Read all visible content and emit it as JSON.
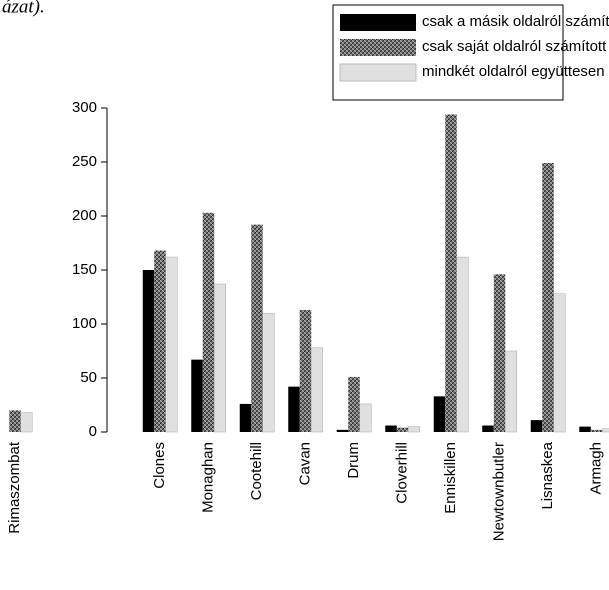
{
  "caption_fragment": "ázat).",
  "chart_data": {
    "type": "bar",
    "categories": [
      "Rimaszombat",
      "Clones",
      "Monaghan",
      "Cootehill",
      "Cavan",
      "Drum",
      "Cloverhill",
      "Enniskillen",
      "Newtownbutler",
      "Lisnaskea",
      "Armagh"
    ],
    "series": [
      {
        "name": "csak a másik oldalról számított",
        "color": "#000000",
        "values": [
          null,
          150,
          67,
          26,
          42,
          2,
          6,
          33,
          6,
          11,
          5
        ]
      },
      {
        "name": "csak saját oldalról számított",
        "color": "#6a6a6a",
        "values": [
          20,
          168,
          203,
          192,
          113,
          51,
          4,
          294,
          146,
          249,
          2
        ]
      },
      {
        "name": "mindkét oldalról együttesen számított",
        "color": "#e0e0e0",
        "values": [
          18,
          162,
          137,
          110,
          78,
          26,
          5,
          162,
          75,
          128,
          3
        ]
      }
    ],
    "ylim": [
      0,
      300
    ],
    "yticks": [
      0,
      50,
      100,
      150,
      200,
      250,
      300
    ],
    "legend": "top-right"
  }
}
